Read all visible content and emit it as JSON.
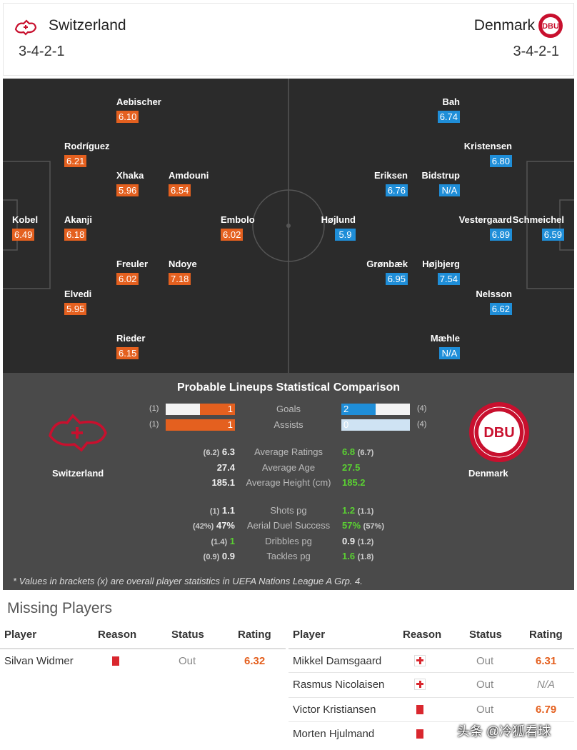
{
  "header": {
    "home": {
      "name": "Switzerland",
      "formation": "3-4-2-1",
      "crest_icon": "switzerland-crest-icon"
    },
    "away": {
      "name": "Denmark",
      "formation": "3-4-2-1",
      "crest_icon": "dbu-crest-icon"
    }
  },
  "pitch": {
    "home_players": [
      {
        "name": "Aebischer",
        "rating": "6.10"
      },
      {
        "name": "Rodríguez",
        "rating": "6.21"
      },
      {
        "name": "Xhaka",
        "rating": "5.96"
      },
      {
        "name": "Amdouni",
        "rating": "6.54"
      },
      {
        "name": "Kobel",
        "rating": "6.49"
      },
      {
        "name": "Akanji",
        "rating": "6.18"
      },
      {
        "name": "Embolo",
        "rating": "6.02"
      },
      {
        "name": "Freuler",
        "rating": "6.02"
      },
      {
        "name": "Ndoye",
        "rating": "7.18"
      },
      {
        "name": "Elvedi",
        "rating": "5.95"
      },
      {
        "name": "Rieder",
        "rating": "6.15"
      }
    ],
    "away_players": [
      {
        "name": "Bah",
        "rating": "6.74"
      },
      {
        "name": "Kristensen",
        "rating": "6.80"
      },
      {
        "name": "Eriksen",
        "rating": "6.76"
      },
      {
        "name": "Bidstrup",
        "rating": "N/A"
      },
      {
        "name": "Højlund",
        "rating": "5.9"
      },
      {
        "name": "Vestergaard",
        "rating": "6.89"
      },
      {
        "name": "Schmeichel",
        "rating": "6.59"
      },
      {
        "name": "Grønbæk",
        "rating": "6.95"
      },
      {
        "name": "Højbjerg",
        "rating": "7.54"
      },
      {
        "name": "Nelsson",
        "rating": "6.62"
      },
      {
        "name": "Mæhle",
        "rating": "N/A"
      }
    ]
  },
  "comparison": {
    "title": "Probable Lineups Statistical Comparison",
    "home_team": "Switzerland",
    "away_team": "Denmark",
    "bars": [
      {
        "label": "Goals",
        "home_bracket": "(1)",
        "home": 1,
        "away": 2,
        "away_bracket": "(4)"
      },
      {
        "label": "Assists",
        "home_bracket": "(1)",
        "home": 1,
        "away": 0,
        "away_bracket": "(4)"
      }
    ],
    "rows": [
      {
        "label": "Average Ratings",
        "home_bracket": "(6.2)",
        "home": "6.3",
        "away": "6.8",
        "away_bracket": "(6.7)"
      },
      {
        "label": "Average Age",
        "home_bracket": "",
        "home": "27.4",
        "away": "27.5",
        "away_bracket": ""
      },
      {
        "label": "Average Height (cm)",
        "home_bracket": "",
        "home": "185.1",
        "away": "185.2",
        "away_bracket": ""
      },
      {
        "label": "Shots pg",
        "home_bracket": "(1)",
        "home": "1.1",
        "away": "1.2",
        "away_bracket": "(1.1)"
      },
      {
        "label": "Aerial Duel Success",
        "home_bracket": "(42%)",
        "home": "47%",
        "away": "57%",
        "away_bracket": "(57%)"
      },
      {
        "label": "Dribbles pg",
        "home_bracket": "(1.4)",
        "home": "1",
        "away": "0.9",
        "away_bracket": "(1.2)"
      },
      {
        "label": "Tackles pg",
        "home_bracket": "(0.9)",
        "home": "0.9",
        "away": "1.6",
        "away_bracket": "(1.8)"
      }
    ],
    "footnote": "* Values in brackets (x) are overall player statistics in UEFA Nations League A Grp. 4."
  },
  "missing": {
    "title": "Missing Players",
    "columns": [
      "Player",
      "Reason",
      "Status",
      "Rating"
    ],
    "home": [
      {
        "player": "Silvan Widmer",
        "reason_icon": "red-card-icon",
        "status": "Out",
        "rating": "6.32"
      }
    ],
    "away": [
      {
        "player": "Mikkel Damsgaard",
        "reason_icon": "injury-icon",
        "status": "Out",
        "rating": "6.31"
      },
      {
        "player": "Rasmus Nicolaisen",
        "reason_icon": "injury-icon",
        "status": "Out",
        "rating": "N/A"
      },
      {
        "player": "Victor Kristiansen",
        "reason_icon": "red-card-icon",
        "status": "Out",
        "rating": "6.79"
      },
      {
        "player": "Morten Hjulmand",
        "reason_icon": "red-card-icon",
        "status": "",
        "rating": ""
      }
    ]
  },
  "watermark": "头条 @冷狐看球",
  "colors": {
    "home": "#e4601f",
    "away": "#1f8ed8",
    "better": "#5ad132",
    "pitch": "#2b2b2b",
    "stats_bg": "#4a4a4a"
  }
}
